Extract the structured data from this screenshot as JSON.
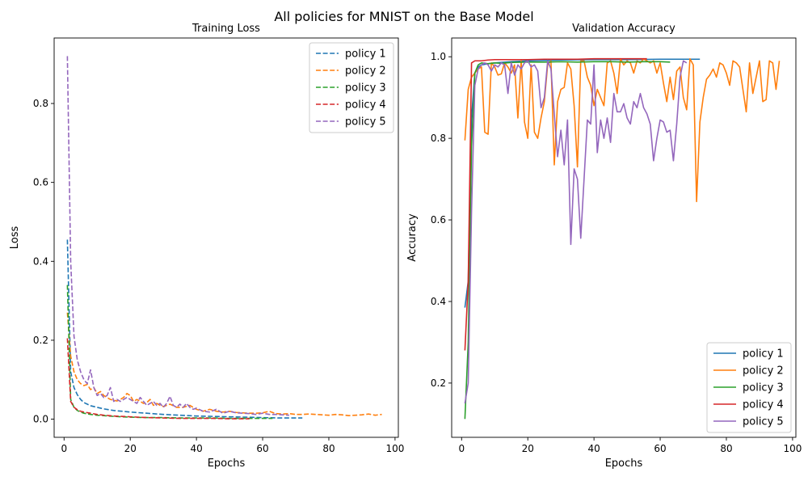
{
  "figure": {
    "title": "All policies for MNIST on the Base Model",
    "series_colors": [
      "#1f77b4",
      "#ff7f0e",
      "#2ca02c",
      "#d62728",
      "#9467bd"
    ]
  },
  "chart_data": [
    {
      "type": "line",
      "title": "Training Loss",
      "xlabel": "Epochs",
      "ylabel": "Loss",
      "line_style": "dashed",
      "xlim": [
        -3,
        101
      ],
      "ylim": [
        -0.046,
        0.966
      ],
      "xticks": [
        0,
        20,
        40,
        60,
        80,
        100
      ],
      "yticks": [
        0.0,
        0.2,
        0.4,
        0.6,
        0.8
      ],
      "ytick_labels": [
        "0.0",
        "0.2",
        "0.4",
        "0.6",
        "0.8"
      ],
      "legend": "top-right",
      "grid": false,
      "series": [
        {
          "name": "policy 1",
          "color": "#1f77b4",
          "x": [
            1,
            2,
            3,
            4,
            5,
            6,
            8,
            10,
            12,
            15,
            20,
            25,
            30,
            35,
            40,
            45,
            50,
            55,
            60,
            65,
            72
          ],
          "y": [
            0.455,
            0.12,
            0.08,
            0.062,
            0.05,
            0.042,
            0.034,
            0.03,
            0.026,
            0.022,
            0.018,
            0.015,
            0.012,
            0.01,
            0.008,
            0.007,
            0.006,
            0.005,
            0.004,
            0.003,
            0.003
          ]
        },
        {
          "name": "policy 2",
          "color": "#ff7f0e",
          "x": [
            1,
            2,
            3,
            4,
            5,
            6,
            7,
            8,
            9,
            10,
            11,
            12,
            13,
            14,
            15,
            16,
            17,
            18,
            19,
            20,
            21,
            22,
            23,
            24,
            25,
            26,
            27,
            28,
            29,
            30,
            32,
            34,
            36,
            38,
            40,
            42,
            44,
            46,
            48,
            50,
            52,
            54,
            56,
            58,
            60,
            62,
            64,
            66,
            68,
            70,
            72,
            74,
            76,
            78,
            80,
            82,
            84,
            86,
            88,
            90,
            92,
            94,
            96
          ],
          "y": [
            0.27,
            0.16,
            0.12,
            0.1,
            0.09,
            0.085,
            0.088,
            0.075,
            0.08,
            0.065,
            0.07,
            0.06,
            0.055,
            0.05,
            0.048,
            0.046,
            0.05,
            0.055,
            0.065,
            0.06,
            0.045,
            0.05,
            0.045,
            0.04,
            0.042,
            0.05,
            0.035,
            0.04,
            0.035,
            0.032,
            0.038,
            0.03,
            0.03,
            0.035,
            0.025,
            0.02,
            0.025,
            0.02,
            0.018,
            0.02,
            0.017,
            0.016,
            0.015,
            0.015,
            0.016,
            0.02,
            0.014,
            0.013,
            0.014,
            0.012,
            0.012,
            0.013,
            0.012,
            0.011,
            0.01,
            0.012,
            0.011,
            0.009,
            0.01,
            0.011,
            0.013,
            0.01,
            0.012
          ]
        },
        {
          "name": "policy 3",
          "color": "#2ca02c",
          "x": [
            1,
            2,
            3,
            4,
            5,
            6,
            8,
            10,
            12,
            15,
            20,
            25,
            30,
            35,
            40,
            45,
            50,
            55,
            60,
            63
          ],
          "y": [
            0.34,
            0.05,
            0.03,
            0.022,
            0.018,
            0.015,
            0.012,
            0.01,
            0.009,
            0.007,
            0.005,
            0.004,
            0.004,
            0.003,
            0.003,
            0.003,
            0.002,
            0.002,
            0.002,
            0.002
          ]
        },
        {
          "name": "policy 4",
          "color": "#d62728",
          "x": [
            1,
            2,
            3,
            4,
            5,
            6,
            8,
            10,
            12,
            15,
            20,
            25,
            30,
            35,
            40,
            45,
            50,
            56
          ],
          "y": [
            0.205,
            0.045,
            0.03,
            0.024,
            0.02,
            0.018,
            0.015,
            0.012,
            0.01,
            0.008,
            0.006,
            0.004,
            0.003,
            0.002,
            0.002,
            0.002,
            0.001,
            0.001
          ]
        },
        {
          "name": "policy 5",
          "color": "#9467bd",
          "x": [
            1,
            2,
            3,
            4,
            5,
            6,
            7,
            8,
            9,
            10,
            11,
            12,
            13,
            14,
            15,
            16,
            17,
            18,
            19,
            20,
            21,
            22,
            23,
            24,
            25,
            26,
            27,
            28,
            29,
            30,
            31,
            32,
            33,
            34,
            35,
            36,
            37,
            38,
            39,
            40,
            42,
            44,
            46,
            48,
            50,
            52,
            54,
            56,
            58,
            60,
            62,
            64,
            66,
            68
          ],
          "y": [
            0.92,
            0.4,
            0.21,
            0.15,
            0.12,
            0.1,
            0.09,
            0.125,
            0.08,
            0.06,
            0.065,
            0.055,
            0.06,
            0.08,
            0.045,
            0.05,
            0.045,
            0.05,
            0.055,
            0.05,
            0.045,
            0.04,
            0.055,
            0.045,
            0.035,
            0.04,
            0.045,
            0.035,
            0.04,
            0.03,
            0.04,
            0.058,
            0.035,
            0.03,
            0.038,
            0.03,
            0.04,
            0.03,
            0.025,
            0.028,
            0.02,
            0.018,
            0.025,
            0.015,
            0.02,
            0.016,
            0.015,
            0.014,
            0.012,
            0.015,
            0.012,
            0.012,
            0.011,
            0.01
          ]
        }
      ]
    },
    {
      "type": "line",
      "title": "Validation Accuracy",
      "xlabel": "Epochs",
      "ylabel": "Accuracy",
      "line_style": "solid",
      "xlim": [
        -3,
        101
      ],
      "ylim": [
        0.067,
        1.046
      ],
      "xticks": [
        0,
        20,
        40,
        60,
        80,
        100
      ],
      "yticks": [
        0.2,
        0.4,
        0.6,
        0.8,
        1.0
      ],
      "ytick_labels": [
        "0.2",
        "0.4",
        "0.6",
        "0.8",
        "1.0"
      ],
      "legend": "bottom-right",
      "grid": false,
      "series": [
        {
          "name": "policy 1",
          "color": "#1f77b4",
          "x": [
            1,
            2,
            3,
            4,
            5,
            6,
            8,
            10,
            15,
            20,
            30,
            40,
            50,
            60,
            72
          ],
          "y": [
            0.385,
            0.45,
            0.85,
            0.96,
            0.975,
            0.98,
            0.983,
            0.985,
            0.988,
            0.99,
            0.992,
            0.993,
            0.993,
            0.994,
            0.994
          ]
        },
        {
          "name": "policy 2",
          "color": "#ff7f0e",
          "x": [
            1,
            2,
            3,
            4,
            5,
            6,
            7,
            8,
            9,
            10,
            11,
            12,
            13,
            14,
            15,
            16,
            17,
            18,
            19,
            20,
            21,
            22,
            23,
            24,
            25,
            26,
            27,
            28,
            29,
            30,
            31,
            32,
            33,
            34,
            35,
            36,
            37,
            38,
            39,
            40,
            41,
            42,
            43,
            44,
            45,
            46,
            47,
            48,
            49,
            50,
            51,
            52,
            53,
            54,
            55,
            56,
            57,
            58,
            59,
            60,
            61,
            62,
            63,
            64,
            65,
            66,
            67,
            68,
            69,
            70,
            71,
            72,
            73,
            74,
            75,
            76,
            77,
            78,
            79,
            80,
            81,
            82,
            83,
            84,
            85,
            86,
            87,
            88,
            89,
            90,
            91,
            92,
            93,
            94,
            95,
            96
          ],
          "y": [
            0.795,
            0.92,
            0.95,
            0.96,
            0.97,
            0.975,
            0.815,
            0.81,
            0.985,
            0.975,
            0.955,
            0.958,
            0.985,
            0.975,
            0.96,
            0.98,
            0.85,
            0.99,
            0.84,
            0.8,
            0.98,
            0.815,
            0.8,
            0.85,
            0.89,
            0.98,
            0.99,
            0.735,
            0.89,
            0.92,
            0.925,
            0.985,
            0.97,
            0.88,
            0.73,
            0.99,
            0.99,
            0.95,
            0.93,
            0.88,
            0.92,
            0.9,
            0.88,
            0.985,
            0.99,
            0.96,
            0.91,
            0.995,
            0.98,
            0.99,
            0.985,
            0.96,
            0.99,
            0.985,
            0.995,
            0.99,
            0.985,
            0.99,
            0.96,
            0.985,
            0.935,
            0.89,
            0.95,
            0.895,
            0.965,
            0.975,
            0.9,
            0.87,
            0.995,
            0.98,
            0.645,
            0.84,
            0.9,
            0.945,
            0.955,
            0.97,
            0.95,
            0.985,
            0.98,
            0.96,
            0.93,
            0.99,
            0.985,
            0.975,
            0.92,
            0.865,
            0.985,
            0.91,
            0.95,
            0.99,
            0.89,
            0.895,
            0.99,
            0.985,
            0.92,
            0.99
          ]
        },
        {
          "name": "policy 3",
          "color": "#2ca02c",
          "x": [
            1,
            2,
            3,
            4,
            5,
            6,
            8,
            10,
            12,
            15,
            20,
            25,
            30,
            35,
            40,
            45,
            50,
            55,
            60,
            63
          ],
          "y": [
            0.112,
            0.3,
            0.78,
            0.96,
            0.98,
            0.985,
            0.983,
            0.985,
            0.984,
            0.986,
            0.987,
            0.987,
            0.988,
            0.987,
            0.988,
            0.988,
            0.987,
            0.988,
            0.988,
            0.987
          ]
        },
        {
          "name": "policy 4",
          "color": "#d62728",
          "x": [
            1,
            2,
            3,
            4,
            5,
            6,
            8,
            10,
            15,
            20,
            25,
            30,
            35,
            40,
            45,
            50,
            56
          ],
          "y": [
            0.28,
            0.45,
            0.985,
            0.99,
            0.99,
            0.99,
            0.992,
            0.993,
            0.993,
            0.993,
            0.994,
            0.994,
            0.994,
            0.995,
            0.995,
            0.995,
            0.995
          ]
        },
        {
          "name": "policy 5",
          "color": "#9467bd",
          "x": [
            1,
            2,
            3,
            4,
            5,
            6,
            7,
            8,
            9,
            10,
            11,
            12,
            13,
            14,
            15,
            16,
            17,
            18,
            19,
            20,
            21,
            22,
            23,
            24,
            25,
            26,
            27,
            28,
            29,
            30,
            31,
            32,
            33,
            34,
            35,
            36,
            37,
            38,
            39,
            40,
            41,
            42,
            43,
            44,
            45,
            46,
            47,
            48,
            49,
            50,
            51,
            52,
            53,
            54,
            55,
            56,
            57,
            58,
            59,
            60,
            61,
            62,
            63,
            64,
            65,
            66,
            67,
            68
          ],
          "y": [
            0.15,
            0.2,
            0.62,
            0.93,
            0.97,
            0.98,
            0.985,
            0.98,
            0.965,
            0.98,
            0.975,
            0.985,
            0.98,
            0.91,
            0.985,
            0.955,
            0.98,
            0.97,
            0.985,
            0.99,
            0.975,
            0.98,
            0.965,
            0.875,
            0.9,
            0.99,
            0.97,
            0.86,
            0.755,
            0.82,
            0.735,
            0.845,
            0.54,
            0.725,
            0.7,
            0.555,
            0.7,
            0.845,
            0.835,
            0.98,
            0.765,
            0.845,
            0.8,
            0.85,
            0.79,
            0.91,
            0.865,
            0.865,
            0.885,
            0.85,
            0.835,
            0.89,
            0.875,
            0.91,
            0.875,
            0.86,
            0.835,
            0.745,
            0.8,
            0.845,
            0.84,
            0.815,
            0.82,
            0.745,
            0.835,
            0.95,
            0.99,
            0.985
          ]
        }
      ]
    }
  ]
}
